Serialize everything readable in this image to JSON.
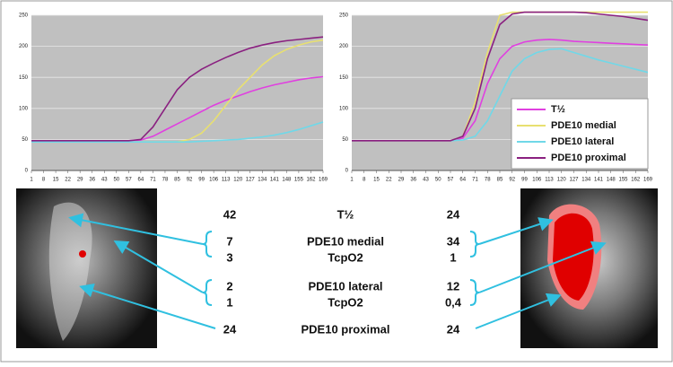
{
  "chart_data": [
    {
      "type": "line",
      "x": [
        1,
        15,
        29,
        43,
        57,
        64,
        71,
        78,
        85,
        92,
        99,
        106,
        113,
        120,
        127,
        134,
        141,
        148,
        155,
        162,
        169
      ],
      "xlim": [
        1,
        169
      ],
      "xticks": [
        1,
        8,
        15,
        22,
        29,
        36,
        43,
        50,
        57,
        64,
        71,
        78,
        85,
        92,
        99,
        106,
        113,
        120,
        127,
        134,
        141,
        148,
        155,
        162,
        169
      ],
      "ylim": [
        0,
        250
      ],
      "yticks": [
        0,
        50,
        100,
        150,
        200,
        250
      ],
      "grid": true,
      "series": [
        {
          "color": "#e040e0",
          "values": [
            48,
            48,
            48,
            48,
            48,
            49,
            55,
            65,
            75,
            85,
            95,
            105,
            113,
            120,
            127,
            133,
            138,
            142,
            146,
            149,
            151
          ]
        },
        {
          "color": "#e8e070",
          "values": [
            46,
            46,
            46,
            46,
            46,
            46,
            46,
            46,
            46,
            50,
            60,
            80,
            105,
            130,
            150,
            170,
            185,
            195,
            202,
            207,
            210
          ]
        },
        {
          "color": "#70d8e8",
          "values": [
            46,
            46,
            46,
            46,
            46,
            46,
            46,
            46,
            46,
            46,
            47,
            48,
            49,
            50,
            52,
            54,
            57,
            61,
            66,
            72,
            78
          ]
        },
        {
          "color": "#8a2080",
          "values": [
            48,
            48,
            48,
            48,
            48,
            50,
            70,
            100,
            130,
            150,
            163,
            173,
            182,
            190,
            197,
            202,
            206,
            209,
            211,
            213,
            215
          ]
        }
      ]
    },
    {
      "type": "line",
      "x": [
        1,
        15,
        29,
        43,
        57,
        64,
        71,
        78,
        85,
        92,
        99,
        106,
        113,
        120,
        127,
        134,
        141,
        148,
        155,
        162,
        169
      ],
      "xlim": [
        1,
        169
      ],
      "xticks": [
        1,
        8,
        15,
        22,
        29,
        36,
        43,
        50,
        57,
        64,
        71,
        78,
        85,
        92,
        99,
        106,
        113,
        120,
        127,
        134,
        141,
        148,
        155,
        162,
        169
      ],
      "ylim": [
        0,
        250
      ],
      "yticks": [
        0,
        50,
        100,
        150,
        200,
        250
      ],
      "grid": true,
      "legend": "lower right",
      "series": [
        {
          "name": "T½",
          "color": "#e040e0",
          "values": [
            48,
            48,
            48,
            48,
            48,
            52,
            80,
            140,
            180,
            200,
            207,
            210,
            211,
            210,
            208,
            207,
            206,
            205,
            204,
            203,
            202
          ]
        },
        {
          "name": "PDE10 medial",
          "color": "#e8e070",
          "values": [
            48,
            48,
            48,
            48,
            48,
            55,
            110,
            190,
            250,
            255,
            255,
            255,
            255,
            255,
            255,
            255,
            255,
            255,
            255,
            255,
            255
          ]
        },
        {
          "name": "PDE10 lateral",
          "color": "#70d8e8",
          "values": [
            48,
            48,
            48,
            48,
            48,
            49,
            55,
            80,
            120,
            160,
            180,
            190,
            195,
            196,
            190,
            184,
            178,
            173,
            168,
            163,
            158
          ]
        },
        {
          "name": "PDE10 proximal",
          "color": "#8a2080",
          "values": [
            48,
            48,
            48,
            48,
            48,
            55,
            100,
            180,
            235,
            252,
            255,
            255,
            255,
            255,
            255,
            254,
            252,
            250,
            248,
            245,
            242
          ]
        }
      ]
    }
  ],
  "table": {
    "rows": [
      [
        "42",
        "T½",
        "24"
      ],
      [
        "7",
        "PDE10 medial",
        "34"
      ],
      [
        "3",
        "TcpO2",
        "1"
      ],
      [
        "2",
        "PDE10 lateral",
        "12"
      ],
      [
        "1",
        "TcpO2",
        "0,4"
      ],
      [
        "24",
        "PDE10 proximal",
        "24"
      ]
    ]
  }
}
